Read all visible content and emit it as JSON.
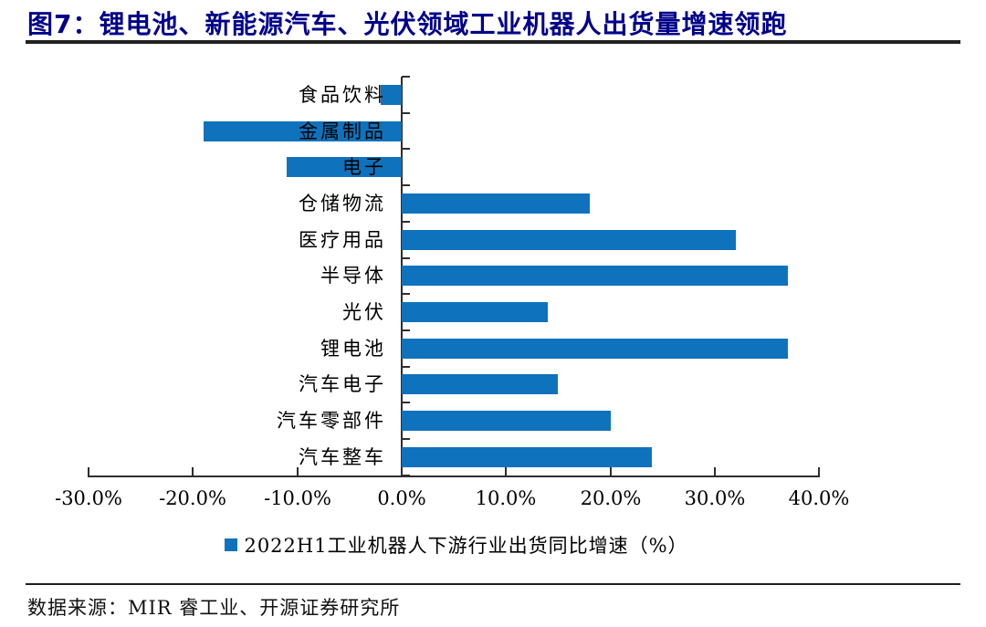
{
  "figure": {
    "title": "图7：锂电池、新能源汽车、光伏领域工业机器人出货量增速领跑",
    "source_text": "数据来源：MIR 睿工业、开源证券研究所"
  },
  "chart_data": {
    "type": "bar",
    "orientation": "horizontal",
    "categories": [
      "食品饮料",
      "金属制品",
      "电子",
      "仓储物流",
      "医疗用品",
      "半导体",
      "光伏",
      "锂电池",
      "汽车电子",
      "汽车零部件",
      "汽车整车"
    ],
    "values": [
      -2.0,
      -19.0,
      -11.0,
      18.0,
      32.0,
      37.0,
      14.0,
      37.0,
      15.0,
      20.0,
      24.0
    ],
    "unit": "%",
    "legend_label": "2022H1工业机器人下游行业出货同比增速（%）",
    "legend_position": "bottom",
    "xlim": [
      -30,
      40
    ],
    "x_ticks": [
      -30,
      -20,
      -10,
      0,
      10,
      20,
      30,
      40
    ],
    "x_tick_labels": [
      "-30.0%",
      "-20.0%",
      "-10.0%",
      "0.0%",
      "10.0%",
      "20.0%",
      "30.0%",
      "40.0%"
    ],
    "grid": false,
    "bar_color": "#0F72BC"
  },
  "colors": {
    "title": "#00008B",
    "bar": "#0F72BC",
    "axis": "#2e2e2e",
    "rule": "#1f1f1f",
    "text": "#000000"
  }
}
